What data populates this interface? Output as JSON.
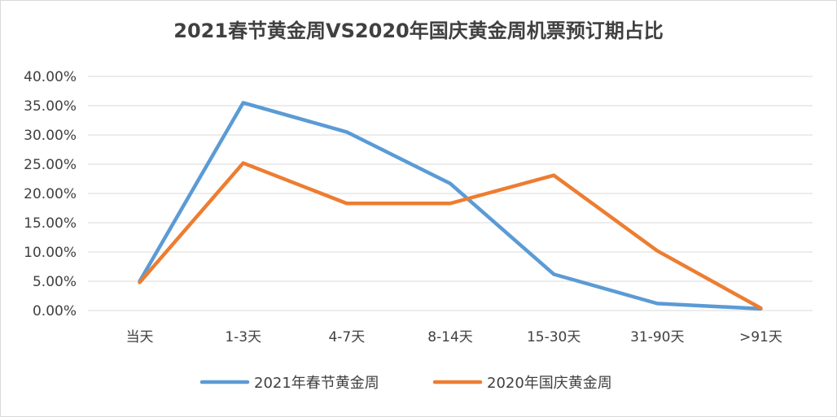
{
  "chart_data": {
    "type": "line",
    "title": "2021春节黄金周VS2020年国庆黄金周机票预订期占比",
    "categories": [
      "当天",
      "1-3天",
      "4-7天",
      "8-14天",
      "15-30天",
      "31-90天",
      ">91天"
    ],
    "ylim": [
      0,
      0.4
    ],
    "yticks": [
      0,
      0.05,
      0.1,
      0.15,
      0.2,
      0.25,
      0.3,
      0.35,
      0.4
    ],
    "ytick_labels": [
      "0.00%",
      "5.00%",
      "10.00%",
      "15.00%",
      "20.00%",
      "25.00%",
      "30.00%",
      "35.00%",
      "40.00%"
    ],
    "grid": true,
    "legend_position": "bottom",
    "series": [
      {
        "name": "2021年春节黄金周",
        "color": "#5b9bd5",
        "values": [
          0.05,
          0.355,
          0.305,
          0.217,
          0.062,
          0.012,
          0.003
        ]
      },
      {
        "name": "2020年国庆黄金周",
        "color": "#ed7d31",
        "values": [
          0.048,
          0.252,
          0.183,
          0.183,
          0.231,
          0.102,
          0.004
        ]
      }
    ]
  }
}
